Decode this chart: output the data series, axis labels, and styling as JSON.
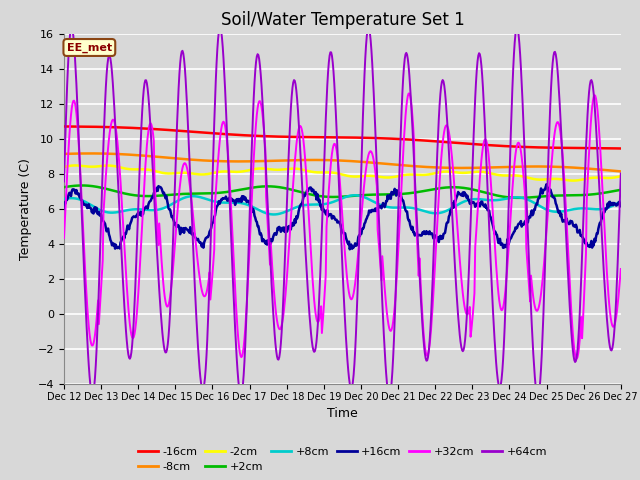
{
  "title": "Soil/Water Temperature Set 1",
  "xlabel": "Time",
  "ylabel": "Temperature (C)",
  "xlim": [
    0,
    15
  ],
  "ylim": [
    -4,
    16
  ],
  "yticks": [
    -4,
    -2,
    0,
    2,
    4,
    6,
    8,
    10,
    12,
    14,
    16
  ],
  "xtick_labels": [
    "Dec 12",
    "Dec 13",
    "Dec 14",
    "Dec 15",
    "Dec 16",
    "Dec 17",
    "Dec 18",
    "Dec 19",
    "Dec 20",
    "Dec 21",
    "Dec 22",
    "Dec 23",
    "Dec 24",
    "Dec 25",
    "Dec 26",
    "Dec 27"
  ],
  "background_color": "#d8d8d8",
  "plot_bg_color": "#d8d8d8",
  "grid_color": "#ffffff",
  "annotation_text": "EE_met",
  "annotation_bg": "#ffffcc",
  "annotation_border": "#8b4513",
  "series_colors": {
    "-16cm": "#ff0000",
    "-8cm": "#ff8800",
    "-2cm": "#ffff00",
    "+2cm": "#00bb00",
    "+8cm": "#00cccc",
    "+16cm": "#000099",
    "+32cm": "#ff00ff",
    "+64cm": "#9900cc"
  },
  "series_lw": {
    "-16cm": 1.8,
    "-8cm": 1.8,
    "-2cm": 1.8,
    "+2cm": 1.8,
    "+8cm": 1.8,
    "+16cm": 1.8,
    "+32cm": 1.4,
    "+64cm": 1.4
  },
  "title_fontsize": 12,
  "axis_label_fontsize": 9,
  "tick_fontsize": 8,
  "xtick_fontsize": 7
}
